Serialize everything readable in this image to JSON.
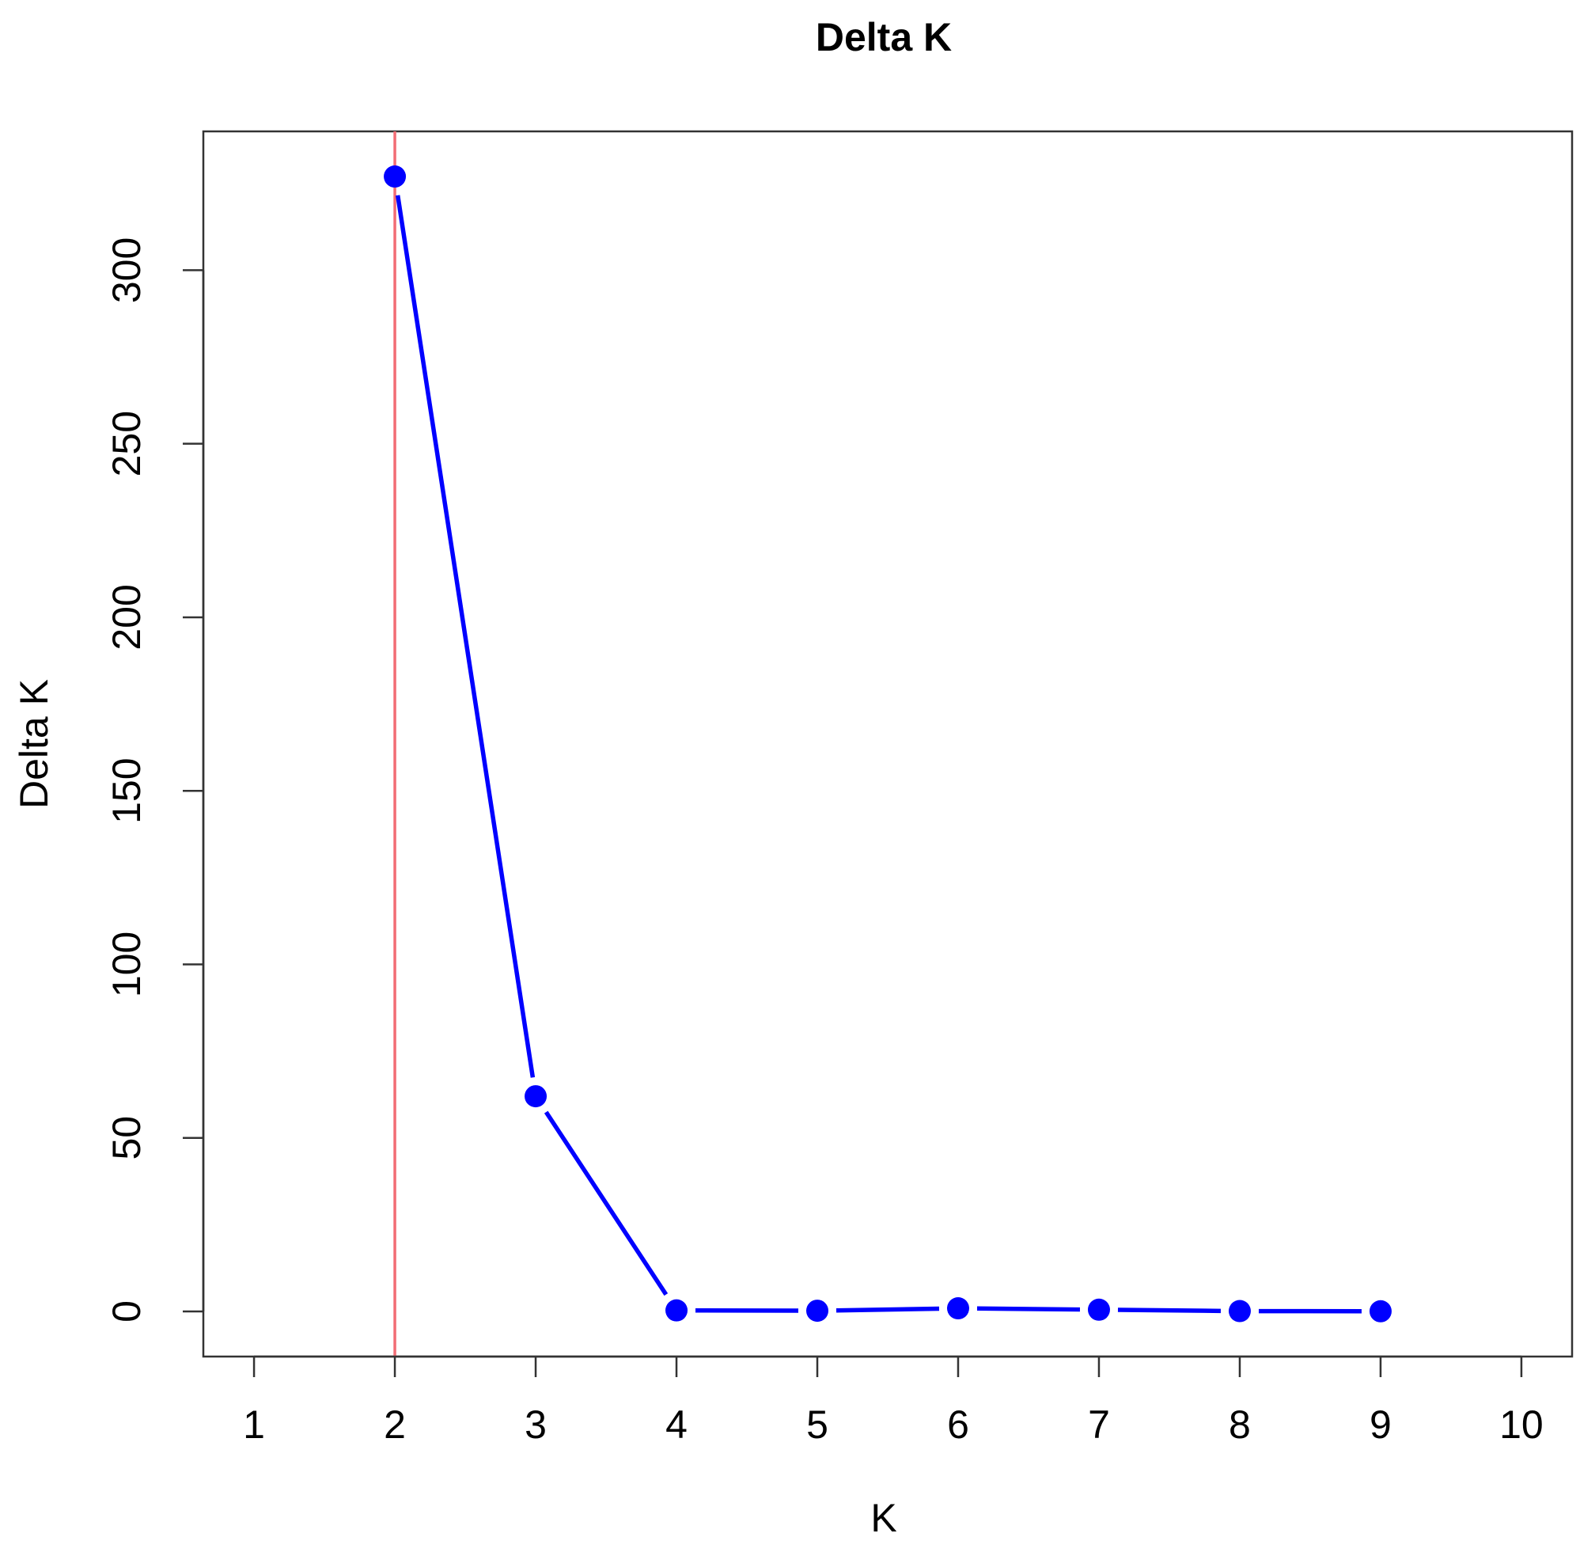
{
  "chart_data": {
    "type": "line",
    "title": "Delta K",
    "xlabel": "K",
    "ylabel": "Delta K",
    "xlim": [
      0.64,
      10.36
    ],
    "ylim": [
      -13,
      340
    ],
    "x_ticks": [
      1,
      2,
      3,
      4,
      5,
      6,
      7,
      8,
      9,
      10
    ],
    "y_ticks": [
      0,
      50,
      100,
      150,
      200,
      250,
      300
    ],
    "grid": false,
    "legend": null,
    "series": [
      {
        "x": [
          2,
          3,
          4,
          5,
          6,
          7,
          8,
          9
        ],
        "y": [
          327,
          62,
          0.3,
          0.2,
          0.9,
          0.5,
          0.1,
          0.05
        ],
        "color": "#0000ff",
        "marker": "filled-circle"
      }
    ],
    "reference_lines": [
      {
        "orientation": "vertical",
        "x": 2,
        "color": "#f26d75"
      }
    ]
  }
}
